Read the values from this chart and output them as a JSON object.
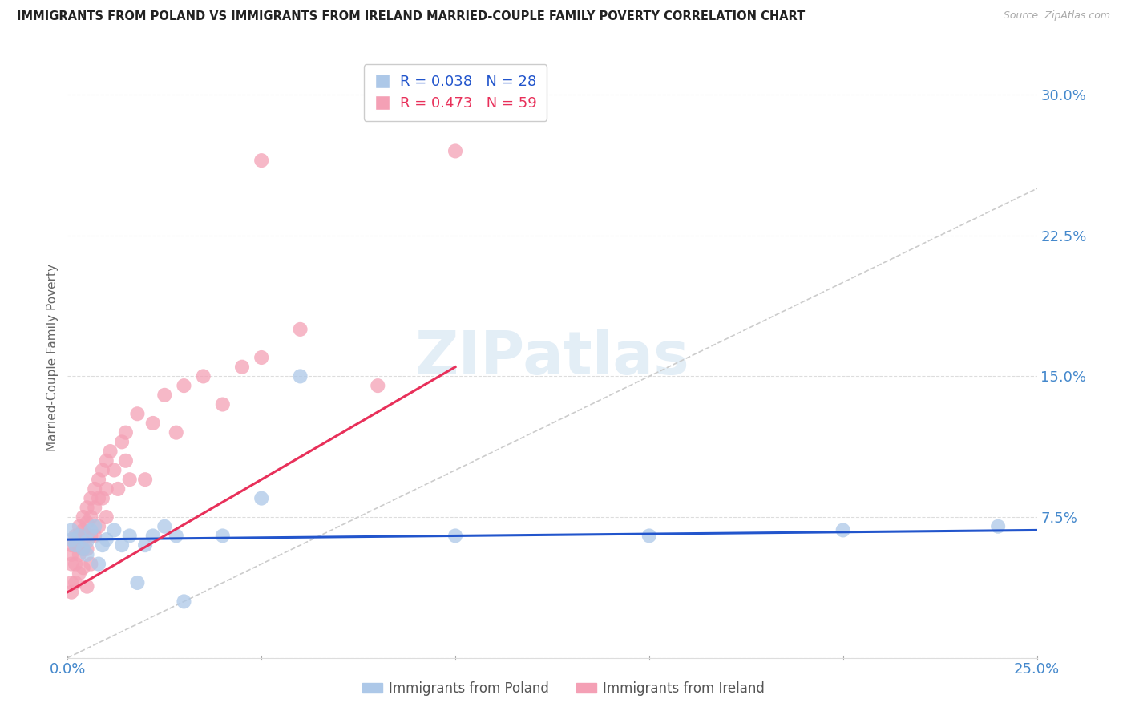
{
  "title": "IMMIGRANTS FROM POLAND VS IMMIGRANTS FROM IRELAND MARRIED-COUPLE FAMILY POVERTY CORRELATION CHART",
  "source": "Source: ZipAtlas.com",
  "ylabel": "Married-Couple Family Poverty",
  "xlim": [
    0,
    0.25
  ],
  "ylim": [
    0.0,
    0.32
  ],
  "ytick_values": [
    0.0,
    0.075,
    0.15,
    0.225,
    0.3
  ],
  "ytick_labels": [
    "",
    "7.5%",
    "15.0%",
    "22.5%",
    "30.0%"
  ],
  "xtick_values": [
    0.0,
    0.05,
    0.1,
    0.15,
    0.2,
    0.25
  ],
  "xtick_labels": [
    "0.0%",
    "",
    "",
    "",
    "",
    "25.0%"
  ],
  "poland_color": "#adc8e8",
  "ireland_color": "#f4a0b5",
  "poland_line_color": "#2255cc",
  "ireland_line_color": "#e8305a",
  "diagonal_color": "#cccccc",
  "background_color": "#ffffff",
  "grid_color": "#dddddd",
  "title_color": "#222222",
  "axis_label_color": "#4488cc",
  "legend_R_poland": "R = 0.038",
  "legend_N_poland": "N = 28",
  "legend_R_ireland": "R = 0.473",
  "legend_N_ireland": "N = 59",
  "poland_scatter_x": [
    0.001,
    0.001,
    0.002,
    0.003,
    0.004,
    0.005,
    0.005,
    0.006,
    0.007,
    0.008,
    0.009,
    0.01,
    0.012,
    0.014,
    0.016,
    0.018,
    0.02,
    0.022,
    0.025,
    0.028,
    0.03,
    0.04,
    0.05,
    0.06,
    0.1,
    0.15,
    0.2,
    0.24
  ],
  "poland_scatter_y": [
    0.063,
    0.068,
    0.06,
    0.065,
    0.058,
    0.062,
    0.055,
    0.068,
    0.07,
    0.05,
    0.06,
    0.063,
    0.068,
    0.06,
    0.065,
    0.04,
    0.06,
    0.065,
    0.07,
    0.065,
    0.03,
    0.065,
    0.085,
    0.15,
    0.065,
    0.065,
    0.068,
    0.07
  ],
  "ireland_scatter_x": [
    0.001,
    0.001,
    0.001,
    0.001,
    0.001,
    0.002,
    0.002,
    0.002,
    0.002,
    0.003,
    0.003,
    0.003,
    0.003,
    0.003,
    0.004,
    0.004,
    0.004,
    0.004,
    0.005,
    0.005,
    0.005,
    0.005,
    0.005,
    0.006,
    0.006,
    0.006,
    0.006,
    0.007,
    0.007,
    0.007,
    0.008,
    0.008,
    0.008,
    0.009,
    0.009,
    0.01,
    0.01,
    0.01,
    0.011,
    0.012,
    0.013,
    0.014,
    0.015,
    0.015,
    0.016,
    0.018,
    0.02,
    0.022,
    0.025,
    0.028,
    0.03,
    0.035,
    0.04,
    0.045,
    0.05,
    0.05,
    0.06,
    0.08,
    0.1
  ],
  "ireland_scatter_y": [
    0.06,
    0.055,
    0.05,
    0.04,
    0.035,
    0.065,
    0.06,
    0.05,
    0.04,
    0.07,
    0.065,
    0.06,
    0.055,
    0.045,
    0.075,
    0.068,
    0.058,
    0.048,
    0.08,
    0.072,
    0.065,
    0.058,
    0.038,
    0.085,
    0.075,
    0.065,
    0.05,
    0.09,
    0.08,
    0.065,
    0.095,
    0.085,
    0.07,
    0.1,
    0.085,
    0.105,
    0.09,
    0.075,
    0.11,
    0.1,
    0.09,
    0.115,
    0.12,
    0.105,
    0.095,
    0.13,
    0.095,
    0.125,
    0.14,
    0.12,
    0.145,
    0.15,
    0.135,
    0.155,
    0.16,
    0.265,
    0.175,
    0.145,
    0.27
  ],
  "poland_line_x0": 0.0,
  "poland_line_y0": 0.063,
  "poland_line_x1": 0.25,
  "poland_line_y1": 0.068,
  "ireland_line_x0": 0.0,
  "ireland_line_y0": 0.035,
  "ireland_line_x1": 0.1,
  "ireland_line_y1": 0.155
}
